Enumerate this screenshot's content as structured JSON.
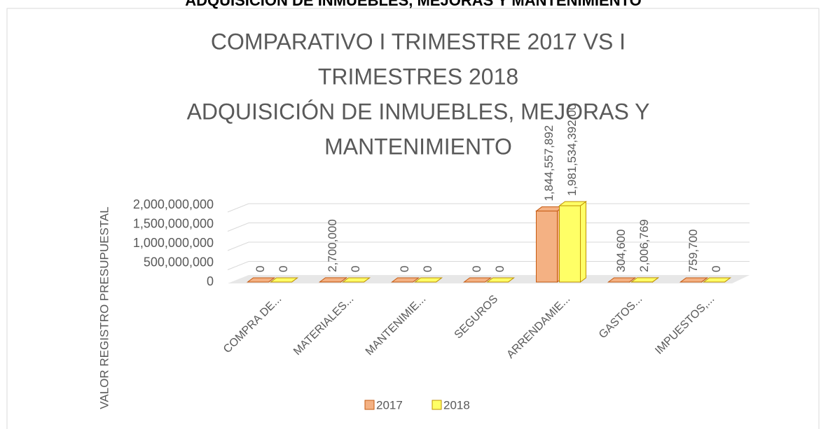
{
  "page_header": "ADQUISICIÓN DE INMUEBLES, MEJORAS Y MANTENIMIENTO",
  "chart_data": {
    "type": "bar3d",
    "title": [
      "COMPARATIVO I TRIMESTRE 2017 VS I",
      "TRIMESTRES 2018",
      "ADQUISICIÓN DE INMUEBLES, MEJORAS Y",
      "MANTENIMIENTO"
    ],
    "y_label": "VALOR REGISTRO PRESUPUESTAL",
    "categories": [
      "COMPRA DE...",
      "MATERIALES...",
      "MANTENIMIE...",
      "SEGUROS",
      "ARRENDAMIE...",
      "GASTOS...",
      "IMPUESTOS,..."
    ],
    "series": [
      {
        "name": "2017",
        "color": "#f4b183",
        "edge": "#c55a11",
        "values": [
          0,
          2700000,
          0,
          0,
          1844557892,
          304600,
          759700
        ],
        "value_labels": [
          "0",
          "2,700,000",
          "0",
          "0",
          "1,844,557,892",
          "304,600",
          "759,700"
        ]
      },
      {
        "name": "2018",
        "color": "#ffff66",
        "edge": "#bf9000",
        "values": [
          0,
          0,
          0,
          0,
          1981534392,
          2006769,
          0
        ],
        "value_labels": [
          "0",
          "0",
          "0",
          "0",
          "1,981,534,392.00",
          "2,006,769",
          "0"
        ]
      }
    ],
    "ylim": [
      0,
      2000000000
    ],
    "yticks": [
      0,
      {
        "value": 500000000,
        "label": "500,000,000"
      },
      {
        "value": 1000000000,
        "label": "1,000,000,000"
      },
      {
        "value": 1500000000,
        "label": "1,500,000,000"
      },
      {
        "value": 2000000000,
        "label": "2,000,000,000"
      }
    ],
    "grid": true,
    "legend": "bottom"
  }
}
